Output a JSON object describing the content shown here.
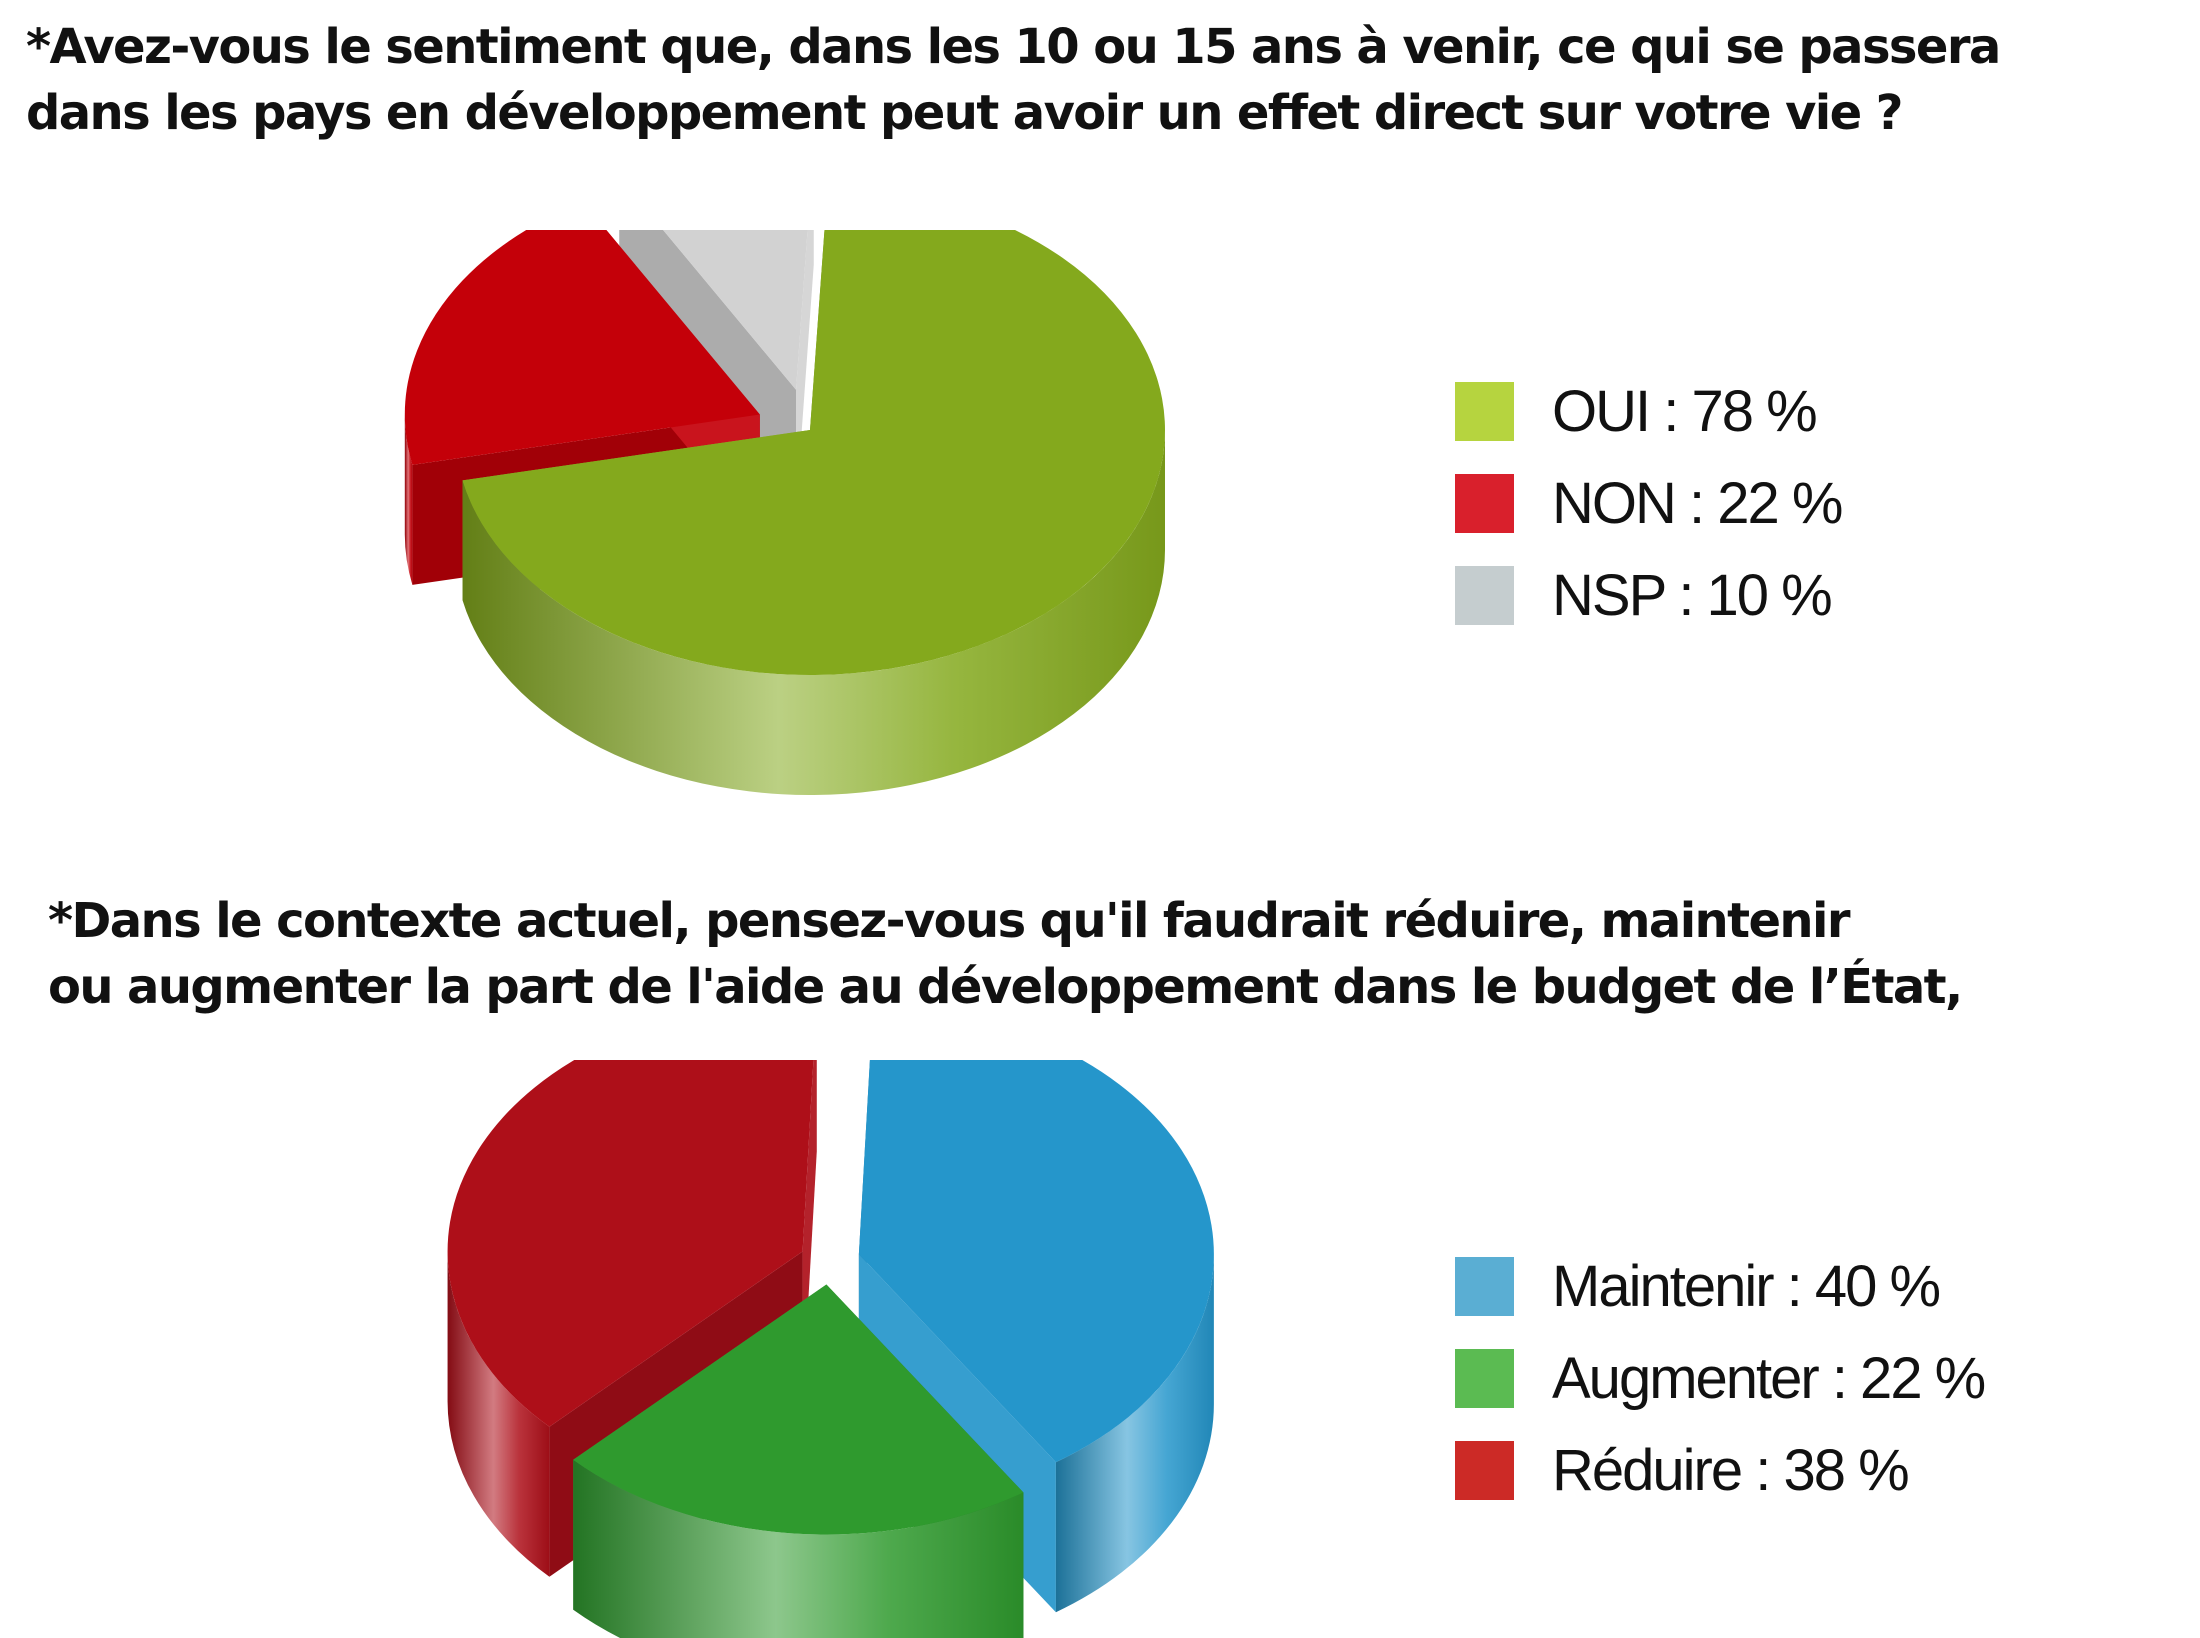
{
  "chart_data": [
    {
      "type": "pie",
      "title": "*Avez-vous le sentiment que, dans les 10 ou 15 ans à venir, ce qui se passera dans les pays en développement peut avoir un effet direct sur votre vie ?",
      "title_lines": [
        "*Avez-vous le sentiment que, dans les 10 ou 15 ans à venir, ce qui se passera",
        "dans les pays en développement peut avoir un effet direct sur votre vie ?"
      ],
      "style": "3d-exploded",
      "legend_position": "right",
      "slices": [
        {
          "label": "OUI",
          "value": 78,
          "legend_text": "OUI : 78 %",
          "color": "#84a91d",
          "legend_color": "#b6d43f"
        },
        {
          "label": "NON",
          "value": 22,
          "legend_text": "NON : 22 %",
          "color": "#c40009",
          "legend_color": "#d9202c"
        },
        {
          "label": "NSP",
          "value": 10,
          "legend_text": "NSP : 10 %",
          "color": "#d2d2d2",
          "legend_color": "#c5cdcf"
        }
      ]
    },
    {
      "type": "pie",
      "title": "*Dans le contexte actuel, pensez-vous qu'il faudrait réduire, maintenir ou augmenter la part de l'aide au développement dans le budget de l’État,",
      "title_lines": [
        "*Dans le contexte actuel, pensez-vous qu'il faudrait réduire, maintenir",
        "ou augmenter la part de l'aide au développement dans le budget de l’État,"
      ],
      "style": "3d-exploded",
      "legend_position": "right",
      "slices": [
        {
          "label": "Maintenir",
          "value": 40,
          "legend_text": "Maintenir : 40 %",
          "color": "#2596cb",
          "legend_color": "#5aaed3"
        },
        {
          "label": "Augmenter",
          "value": 22,
          "legend_text": "Augmenter : 22 %",
          "color": "#2f9a2e",
          "legend_color": "#5bbb52"
        },
        {
          "label": "Réduire",
          "value": 38,
          "legend_text": "Réduire : 38 %",
          "color": "#ae0f19",
          "legend_color": "#cc2a26"
        }
      ]
    }
  ]
}
